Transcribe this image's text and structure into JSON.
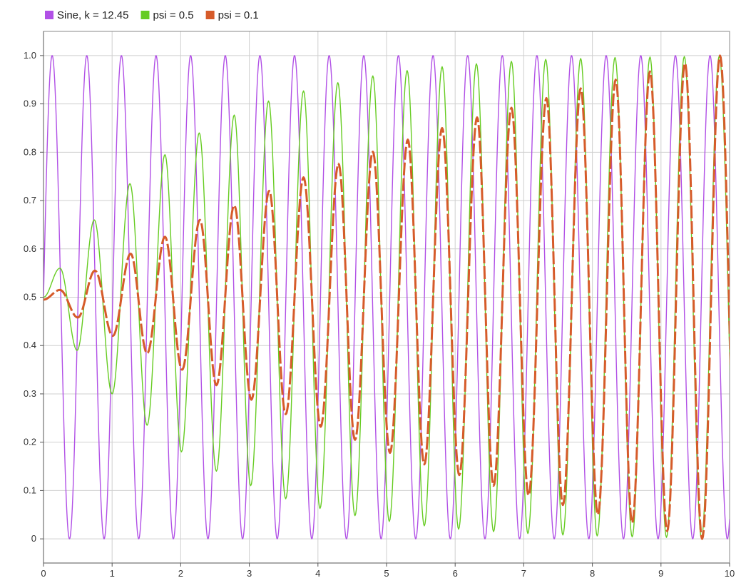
{
  "chart_data": {
    "type": "line",
    "title": "",
    "xlabel": "",
    "ylabel": "",
    "xlim": [
      0,
      10
    ],
    "ylim": [
      -0.05,
      1.05
    ],
    "x_ticks": [
      "0",
      "1",
      "2",
      "3",
      "4",
      "5",
      "6",
      "7",
      "8",
      "9",
      "10"
    ],
    "y_ticks": [
      "0",
      "0.1",
      "0.2",
      "0.3",
      "0.4",
      "0.5",
      "0.6",
      "0.7",
      "0.8",
      "0.9",
      "1.0"
    ],
    "grid": true,
    "legend_position": "top-left",
    "series": [
      {
        "name": "Sine, k = 12.45",
        "color": "#b150e6",
        "style": "solid",
        "formula": "0.5 + 0.5*sin(12.45*x)",
        "k": 12.45,
        "peaks": [
          {
            "x": 0.13,
            "y": 1.0
          },
          {
            "x": 0.63,
            "y": 1.0
          },
          {
            "x": 1.13,
            "y": 1.0
          },
          {
            "x": 1.64,
            "y": 1.0
          },
          {
            "x": 2.14,
            "y": 1.0
          },
          {
            "x": 2.65,
            "y": 1.0
          },
          {
            "x": 3.15,
            "y": 1.0
          },
          {
            "x": 3.66,
            "y": 1.0
          },
          {
            "x": 4.16,
            "y": 1.0
          },
          {
            "x": 4.67,
            "y": 1.0
          },
          {
            "x": 5.17,
            "y": 1.0
          },
          {
            "x": 5.68,
            "y": 1.0
          },
          {
            "x": 6.18,
            "y": 1.0
          },
          {
            "x": 6.69,
            "y": 1.0
          },
          {
            "x": 7.19,
            "y": 1.0
          },
          {
            "x": 7.7,
            "y": 1.0
          },
          {
            "x": 8.2,
            "y": 1.0
          },
          {
            "x": 8.71,
            "y": 1.0
          },
          {
            "x": 9.21,
            "y": 1.0
          },
          {
            "x": 9.71,
            "y": 1.0
          }
        ],
        "troughs": [
          {
            "x": 0.38,
            "y": 0.0
          },
          {
            "x": 0.88,
            "y": 0.0
          },
          {
            "x": 1.39,
            "y": 0.0
          },
          {
            "x": 1.89,
            "y": 0.0
          },
          {
            "x": 2.4,
            "y": 0.0
          },
          {
            "x": 2.9,
            "y": 0.0
          },
          {
            "x": 3.41,
            "y": 0.0
          },
          {
            "x": 3.91,
            "y": 0.0
          },
          {
            "x": 4.42,
            "y": 0.0
          },
          {
            "x": 4.92,
            "y": 0.0
          },
          {
            "x": 5.43,
            "y": 0.0
          },
          {
            "x": 5.93,
            "y": 0.0
          },
          {
            "x": 6.44,
            "y": 0.0
          },
          {
            "x": 6.94,
            "y": 0.0
          },
          {
            "x": 7.45,
            "y": 0.0
          },
          {
            "x": 7.95,
            "y": 0.0
          },
          {
            "x": 8.45,
            "y": 0.0
          },
          {
            "x": 8.96,
            "y": 0.0
          },
          {
            "x": 9.46,
            "y": 0.0
          },
          {
            "x": 9.97,
            "y": 0.0
          }
        ]
      },
      {
        "name": "psi = 0.5",
        "color": "#66cc22",
        "style": "solid",
        "peaks": [
          {
            "x": 0.24,
            "y": 0.56
          },
          {
            "x": 0.74,
            "y": 0.66
          },
          {
            "x": 1.26,
            "y": 0.735
          },
          {
            "x": 1.77,
            "y": 0.795
          },
          {
            "x": 2.27,
            "y": 0.84
          },
          {
            "x": 2.78,
            "y": 0.877
          },
          {
            "x": 3.28,
            "y": 0.906
          },
          {
            "x": 3.79,
            "y": 0.927
          },
          {
            "x": 4.29,
            "y": 0.944
          },
          {
            "x": 4.8,
            "y": 0.958
          },
          {
            "x": 5.3,
            "y": 0.969
          },
          {
            "x": 5.81,
            "y": 0.977
          },
          {
            "x": 6.31,
            "y": 0.983
          },
          {
            "x": 6.82,
            "y": 0.988
          },
          {
            "x": 7.32,
            "y": 0.992
          },
          {
            "x": 7.83,
            "y": 0.994
          },
          {
            "x": 8.33,
            "y": 0.996
          },
          {
            "x": 8.84,
            "y": 0.997
          },
          {
            "x": 9.34,
            "y": 0.998
          },
          {
            "x": 9.85,
            "y": 0.999
          }
        ],
        "troughs": [
          {
            "x": 0.0,
            "y": 0.5
          },
          {
            "x": 0.49,
            "y": 0.39
          },
          {
            "x": 1.0,
            "y": 0.3
          },
          {
            "x": 1.51,
            "y": 0.235
          },
          {
            "x": 2.01,
            "y": 0.18
          },
          {
            "x": 2.52,
            "y": 0.14
          },
          {
            "x": 3.02,
            "y": 0.11
          },
          {
            "x": 3.53,
            "y": 0.083
          },
          {
            "x": 4.03,
            "y": 0.063
          },
          {
            "x": 4.54,
            "y": 0.048
          },
          {
            "x": 5.04,
            "y": 0.036
          },
          {
            "x": 5.55,
            "y": 0.027
          },
          {
            "x": 6.05,
            "y": 0.02
          },
          {
            "x": 6.56,
            "y": 0.015
          },
          {
            "x": 7.06,
            "y": 0.011
          },
          {
            "x": 7.57,
            "y": 0.008
          },
          {
            "x": 8.07,
            "y": 0.006
          },
          {
            "x": 8.58,
            "y": 0.004
          },
          {
            "x": 9.08,
            "y": 0.003
          },
          {
            "x": 9.59,
            "y": 0.002
          }
        ]
      },
      {
        "name": "psi = 0.1",
        "color": "#d65b2a",
        "style": "solid-then-dashed",
        "peaks": [
          {
            "x": 0.24,
            "y": 0.515
          },
          {
            "x": 0.75,
            "y": 0.555
          },
          {
            "x": 1.27,
            "y": 0.59
          },
          {
            "x": 1.77,
            "y": 0.625
          },
          {
            "x": 2.28,
            "y": 0.66
          },
          {
            "x": 2.78,
            "y": 0.69
          },
          {
            "x": 3.29,
            "y": 0.72
          },
          {
            "x": 3.79,
            "y": 0.748
          },
          {
            "x": 4.3,
            "y": 0.776
          },
          {
            "x": 4.8,
            "y": 0.801
          },
          {
            "x": 5.31,
            "y": 0.826
          },
          {
            "x": 5.81,
            "y": 0.85
          },
          {
            "x": 6.32,
            "y": 0.872
          },
          {
            "x": 6.82,
            "y": 0.892
          },
          {
            "x": 7.33,
            "y": 0.912
          },
          {
            "x": 7.83,
            "y": 0.932
          },
          {
            "x": 8.34,
            "y": 0.95
          },
          {
            "x": 8.84,
            "y": 0.967
          },
          {
            "x": 9.35,
            "y": 0.984
          },
          {
            "x": 9.86,
            "y": 1.0
          }
        ],
        "troughs": [
          {
            "x": 0.0,
            "y": 0.495
          },
          {
            "x": 0.5,
            "y": 0.458
          },
          {
            "x": 1.01,
            "y": 0.42
          },
          {
            "x": 1.51,
            "y": 0.384
          },
          {
            "x": 2.02,
            "y": 0.35
          },
          {
            "x": 2.52,
            "y": 0.318
          },
          {
            "x": 3.03,
            "y": 0.288
          },
          {
            "x": 3.53,
            "y": 0.258
          },
          {
            "x": 4.04,
            "y": 0.232
          },
          {
            "x": 4.54,
            "y": 0.205
          },
          {
            "x": 5.05,
            "y": 0.178
          },
          {
            "x": 5.55,
            "y": 0.154
          },
          {
            "x": 6.06,
            "y": 0.132
          },
          {
            "x": 6.56,
            "y": 0.11
          },
          {
            "x": 7.07,
            "y": 0.09
          },
          {
            "x": 7.57,
            "y": 0.07
          },
          {
            "x": 8.08,
            "y": 0.05
          },
          {
            "x": 8.58,
            "y": 0.033
          },
          {
            "x": 9.09,
            "y": 0.016
          },
          {
            "x": 9.6,
            "y": 0.0
          }
        ]
      }
    ]
  }
}
